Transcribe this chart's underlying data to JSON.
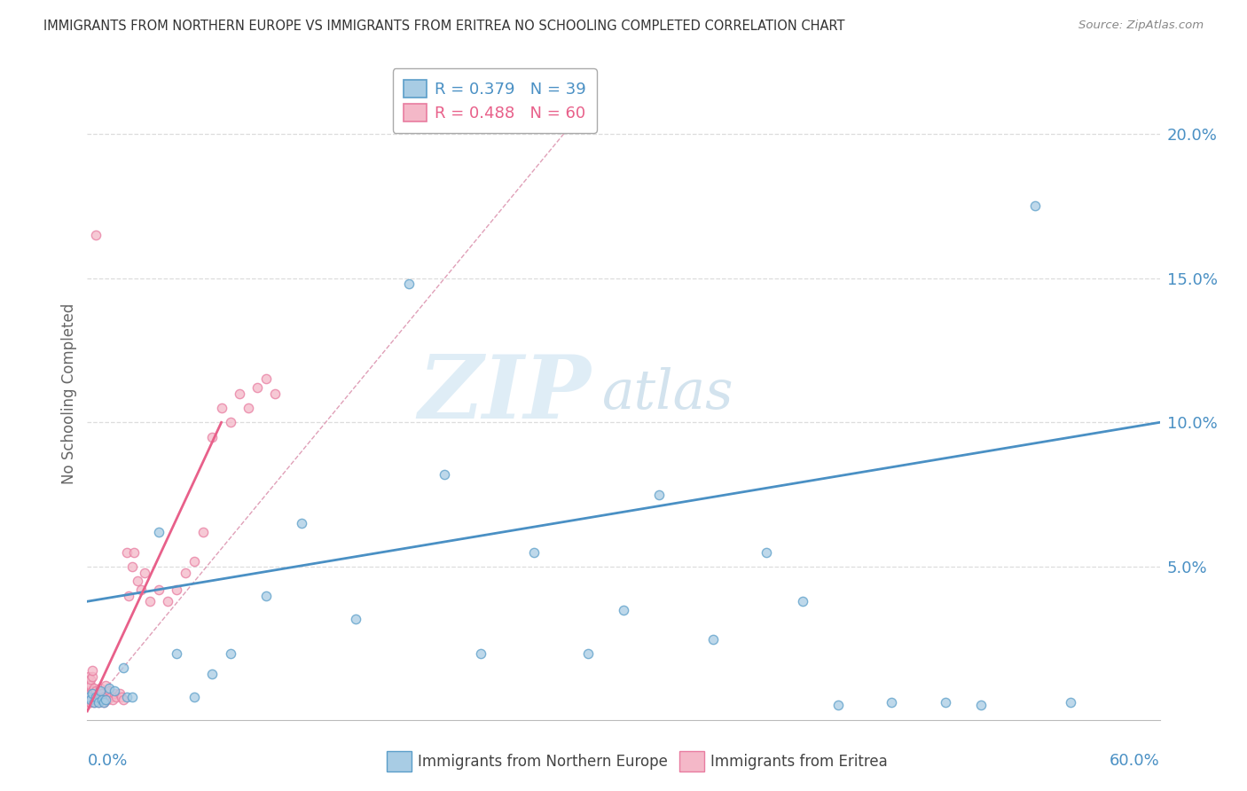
{
  "title": "IMMIGRANTS FROM NORTHERN EUROPE VS IMMIGRANTS FROM ERITREA NO SCHOOLING COMPLETED CORRELATION CHART",
  "source": "Source: ZipAtlas.com",
  "ylabel": "No Schooling Completed",
  "right_ytick_vals": [
    0.05,
    0.1,
    0.15,
    0.2
  ],
  "right_ytick_labels": [
    "5.0%",
    "10.0%",
    "15.0%",
    "20.0%"
  ],
  "xlim": [
    0.0,
    0.6
  ],
  "ylim": [
    -0.003,
    0.223
  ],
  "legend_blue_r": "R = 0.379",
  "legend_blue_n": "N = 39",
  "legend_pink_r": "R = 0.488",
  "legend_pink_n": "N = 60",
  "blue_color": "#a8cce4",
  "pink_color": "#f4b8c8",
  "blue_edge_color": "#5b9ec9",
  "pink_edge_color": "#e87ca0",
  "blue_line_color": "#4a90c4",
  "pink_line_color": "#e8608a",
  "grid_color": "#dddddd",
  "dash_color": "#e0a0b8",
  "watermark_zip_color": "#c8dff0",
  "watermark_atlas_color": "#b0cce0",
  "blue_trend_x0": 0.0,
  "blue_trend_y0": 0.038,
  "blue_trend_x1": 0.6,
  "blue_trend_y1": 0.1,
  "pink_trend_x0": 0.0,
  "pink_trend_y0": 0.0,
  "pink_trend_x1": 0.075,
  "pink_trend_y1": 0.1,
  "blue_scatter_x": [
    0.001,
    0.002,
    0.003,
    0.004,
    0.005,
    0.006,
    0.007,
    0.008,
    0.009,
    0.01,
    0.012,
    0.015,
    0.02,
    0.022,
    0.025,
    0.04,
    0.05,
    0.06,
    0.07,
    0.08,
    0.1,
    0.12,
    0.15,
    0.18,
    0.2,
    0.22,
    0.25,
    0.28,
    0.3,
    0.32,
    0.35,
    0.38,
    0.4,
    0.42,
    0.45,
    0.48,
    0.5,
    0.53,
    0.55
  ],
  "blue_scatter_y": [
    0.005,
    0.004,
    0.006,
    0.003,
    0.005,
    0.003,
    0.007,
    0.004,
    0.003,
    0.004,
    0.008,
    0.007,
    0.015,
    0.005,
    0.005,
    0.062,
    0.02,
    0.005,
    0.013,
    0.02,
    0.04,
    0.065,
    0.032,
    0.148,
    0.082,
    0.02,
    0.055,
    0.02,
    0.035,
    0.075,
    0.025,
    0.055,
    0.038,
    0.002,
    0.003,
    0.003,
    0.002,
    0.175,
    0.003
  ],
  "pink_scatter_x": [
    0.001,
    0.001,
    0.001,
    0.001,
    0.001,
    0.002,
    0.002,
    0.002,
    0.002,
    0.003,
    0.003,
    0.003,
    0.003,
    0.004,
    0.004,
    0.004,
    0.005,
    0.005,
    0.005,
    0.006,
    0.006,
    0.007,
    0.007,
    0.008,
    0.008,
    0.009,
    0.009,
    0.01,
    0.01,
    0.011,
    0.012,
    0.013,
    0.014,
    0.015,
    0.016,
    0.018,
    0.019,
    0.02,
    0.022,
    0.023,
    0.025,
    0.026,
    0.028,
    0.03,
    0.032,
    0.035,
    0.04,
    0.045,
    0.05,
    0.055,
    0.06,
    0.065,
    0.07,
    0.075,
    0.08,
    0.085,
    0.09,
    0.095,
    0.1,
    0.105
  ],
  "pink_scatter_y": [
    0.004,
    0.007,
    0.009,
    0.012,
    0.003,
    0.003,
    0.006,
    0.009,
    0.011,
    0.004,
    0.007,
    0.012,
    0.014,
    0.003,
    0.005,
    0.008,
    0.004,
    0.007,
    0.165,
    0.003,
    0.006,
    0.004,
    0.008,
    0.004,
    0.006,
    0.003,
    0.005,
    0.004,
    0.009,
    0.004,
    0.007,
    0.005,
    0.004,
    0.006,
    0.005,
    0.006,
    0.005,
    0.004,
    0.055,
    0.04,
    0.05,
    0.055,
    0.045,
    0.042,
    0.048,
    0.038,
    0.042,
    0.038,
    0.042,
    0.048,
    0.052,
    0.062,
    0.095,
    0.105,
    0.1,
    0.11,
    0.105,
    0.112,
    0.115,
    0.11
  ]
}
